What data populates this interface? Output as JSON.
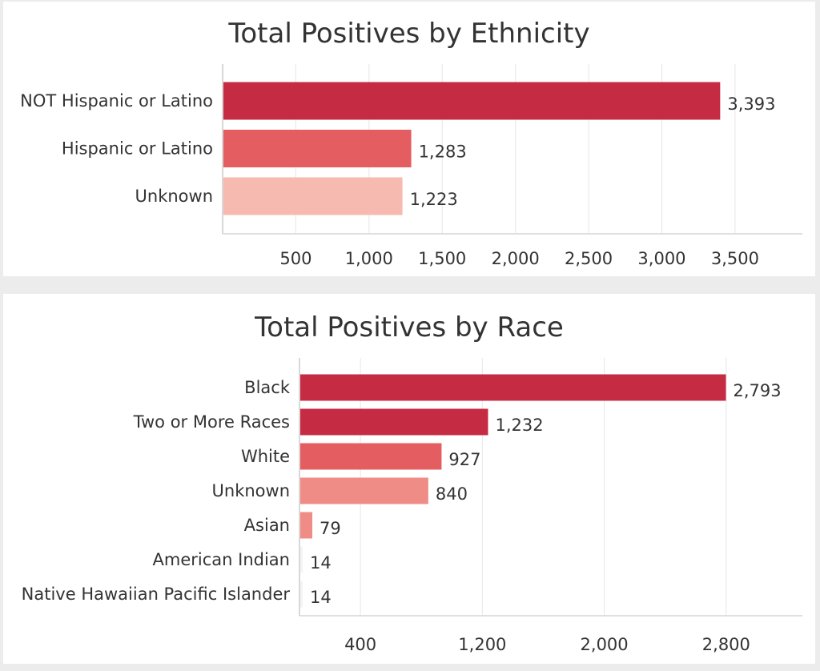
{
  "chart_data": [
    {
      "type": "bar",
      "orientation": "horizontal",
      "title": "Total Positives by Ethnicity",
      "categories": [
        "NOT Hispanic or Latino",
        "Hispanic or Latino",
        "Unknown"
      ],
      "values": [
        3393,
        1283,
        1223
      ],
      "value_labels": [
        "3,393",
        "1,283",
        "1,223"
      ],
      "colors": [
        "#c52b42",
        "#e45d60",
        "#f7bab0"
      ],
      "xlim": [
        0,
        3960
      ],
      "ticks": [
        500,
        1000,
        1500,
        2000,
        2500,
        3000,
        3500
      ],
      "tick_labels": [
        "500",
        "1,000",
        "1,500",
        "2,000",
        "2,500",
        "3,000",
        "3,500"
      ],
      "grid": true,
      "xlabel": "",
      "ylabel": ""
    },
    {
      "type": "bar",
      "orientation": "horizontal",
      "title": "Total Positives by Race",
      "categories": [
        "Black",
        "Two or More Races",
        "White",
        "Unknown",
        "Asian",
        "American Indian",
        "Native Hawaiian Pacific Islander"
      ],
      "values": [
        2793,
        1232,
        927,
        840,
        79,
        14,
        14
      ],
      "value_labels": [
        "2,793",
        "1,232",
        "927",
        "840",
        "79",
        "14",
        "14"
      ],
      "colors": [
        "#c52b42",
        "#c52b42",
        "#e45d60",
        "#f08c86",
        "#f08c86",
        "#f4f4f4",
        "#f4f4f4"
      ],
      "xlim": [
        0,
        3300
      ],
      "ticks": [
        400,
        1200,
        2000,
        2800
      ],
      "tick_labels": [
        "400",
        "1,200",
        "2,000",
        "2,800"
      ],
      "grid": true,
      "xlabel": "",
      "ylabel": ""
    }
  ]
}
